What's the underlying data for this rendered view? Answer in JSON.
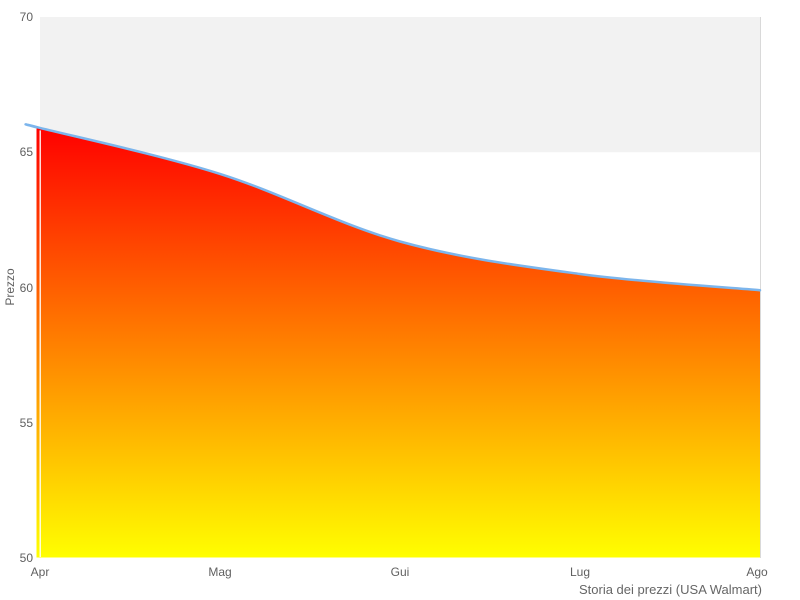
{
  "chart_data": {
    "type": "area",
    "categories": [
      "Apr",
      "Mag",
      "Gui",
      "Lug",
      "Ago"
    ],
    "values": [
      65.9,
      64.2,
      61.7,
      60.5,
      59.9
    ],
    "series_name": "Prezzo",
    "title": "",
    "xlabel": "Storia dei prezzi (USA Walmart)",
    "ylabel": "Prezzo",
    "ylim": [
      50,
      70
    ],
    "yticks": [
      70,
      65,
      60,
      55,
      50
    ],
    "grid": "alternate-band-top",
    "legend": "none",
    "colors": {
      "line": "#7cb5ec",
      "fill_top": "#ff0000",
      "fill_bottom": "#ffff00",
      "band": "#f2f2f2",
      "plot_border": "#d9d9d9",
      "axis_text": "#606060",
      "title_text": "#666666"
    }
  }
}
